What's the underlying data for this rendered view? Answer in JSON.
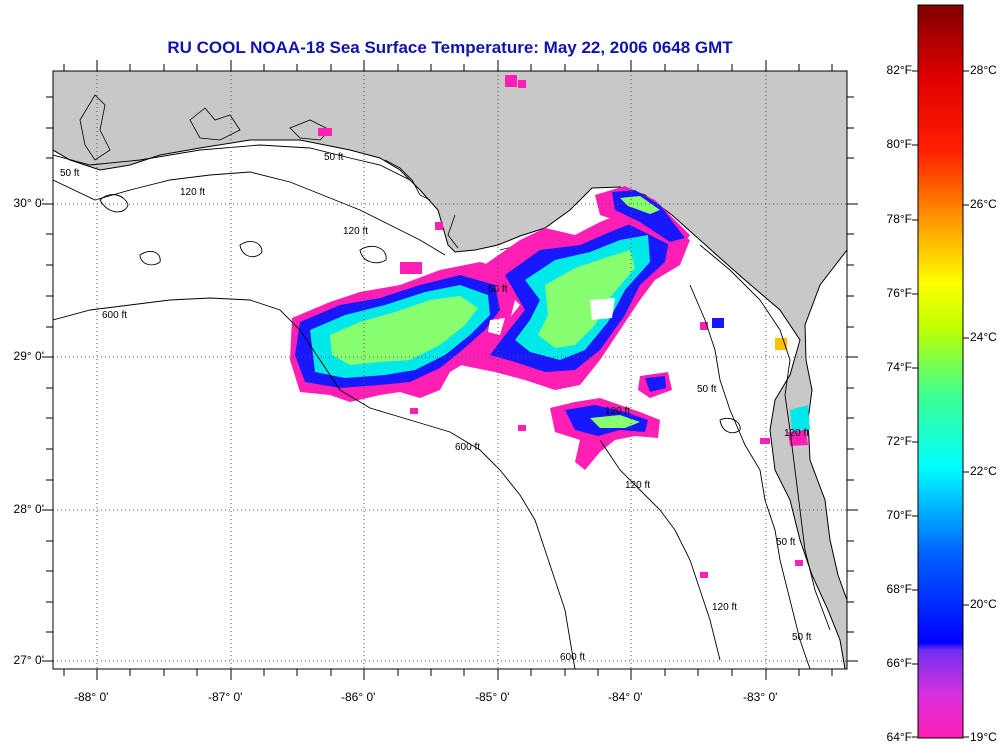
{
  "title": "RU COOL  NOAA-18  Sea Surface Temperature:  May 22, 2006 0648 GMT",
  "longitude_labels": [
    "-88° 0'",
    "-87° 0'",
    "-86° 0'",
    "-85° 0'",
    "-84° 0'",
    "-83° 0'"
  ],
  "latitude_labels": [
    "30° 0'",
    "29° 0'",
    "28° 0'",
    "27° 0'"
  ],
  "contour_labels": [
    "50 ft",
    "120 ft",
    "600 ft"
  ],
  "colorbar": {
    "fahrenheit_labels": [
      "82°F",
      "80°F",
      "78°F",
      "76°F",
      "74°F",
      "72°F",
      "70°F",
      "68°F",
      "66°F",
      "64°F"
    ],
    "celsius_labels": [
      "28°C",
      "26°C",
      "24°C",
      "22°C",
      "20°C",
      "19°C"
    ],
    "colors": [
      "#ff1fb4",
      "#a040f0",
      "#0000ff",
      "#00b0ff",
      "#00ffff",
      "#40ff90",
      "#c0ff00",
      "#ffff00",
      "#ffa000",
      "#ff3000",
      "#ff0000",
      "#800000"
    ]
  },
  "colors": {
    "title": "#1212b0",
    "land": "#c8c8c8",
    "water": "#ffffff",
    "cold_pink": "#ff1fb4",
    "blue": "#1818ff",
    "cyan": "#00e8e8",
    "green": "#88ff70"
  }
}
